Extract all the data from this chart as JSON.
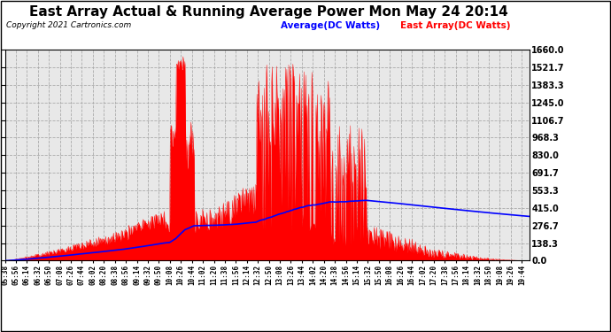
{
  "title": "East Array Actual & Running Average Power Mon May 24 20:14",
  "copyright": "Copyright 2021 Cartronics.com",
  "legend_avg": "Average(DC Watts)",
  "legend_east": "East Array(DC Watts)",
  "legend_avg_color": "blue",
  "legend_east_color": "red",
  "title_color": "black",
  "title_fontsize": 11,
  "ymin": 0.0,
  "ymax": 1660.0,
  "yticks": [
    0.0,
    138.3,
    276.7,
    415.0,
    553.3,
    691.7,
    830.0,
    968.3,
    1106.7,
    1245.0,
    1383.3,
    1521.7,
    1660.0
  ],
  "plot_bg_color": "#e8e8e8",
  "fig_bg_color": "white",
  "grid_color": "#aaaaaa",
  "bar_color": "red",
  "avg_line_color": "blue"
}
